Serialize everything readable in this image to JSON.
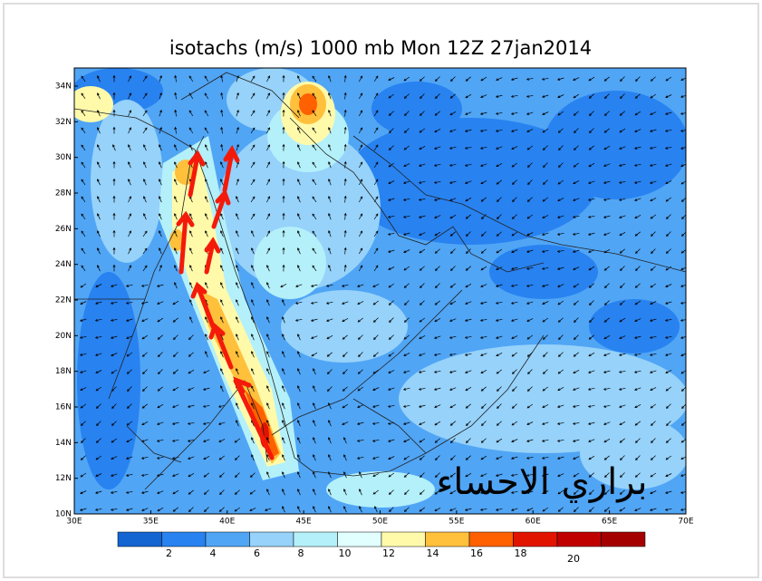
{
  "title": "isotachs (m/s) 1000 mb Mon 12Z 27jan2014",
  "lat_labels": [
    "10N",
    "12N",
    "14N",
    "16N",
    "18N",
    "20N",
    "22N",
    "24N",
    "26N",
    "28N",
    "30N",
    "32N",
    "34N"
  ],
  "lon_labels": [
    "30E",
    "35E",
    "40E",
    "45E",
    "50E",
    "55E",
    "60E",
    "65E",
    "70E"
  ],
  "colorbar": {
    "colors": [
      "#1464d2",
      "#2882f0",
      "#50a5f5",
      "#96d2fa",
      "#b4f0fa",
      "#e1ffff",
      "#fffaaa",
      "#ffc03c",
      "#ff6000",
      "#e11400",
      "#c00000",
      "#a50000"
    ],
    "labels": [
      "2",
      "4",
      "6",
      "8",
      "10",
      "12",
      "14",
      "16",
      "18"
    ],
    "extra_label": "20"
  },
  "watermark": "براري الاحساء"
}
